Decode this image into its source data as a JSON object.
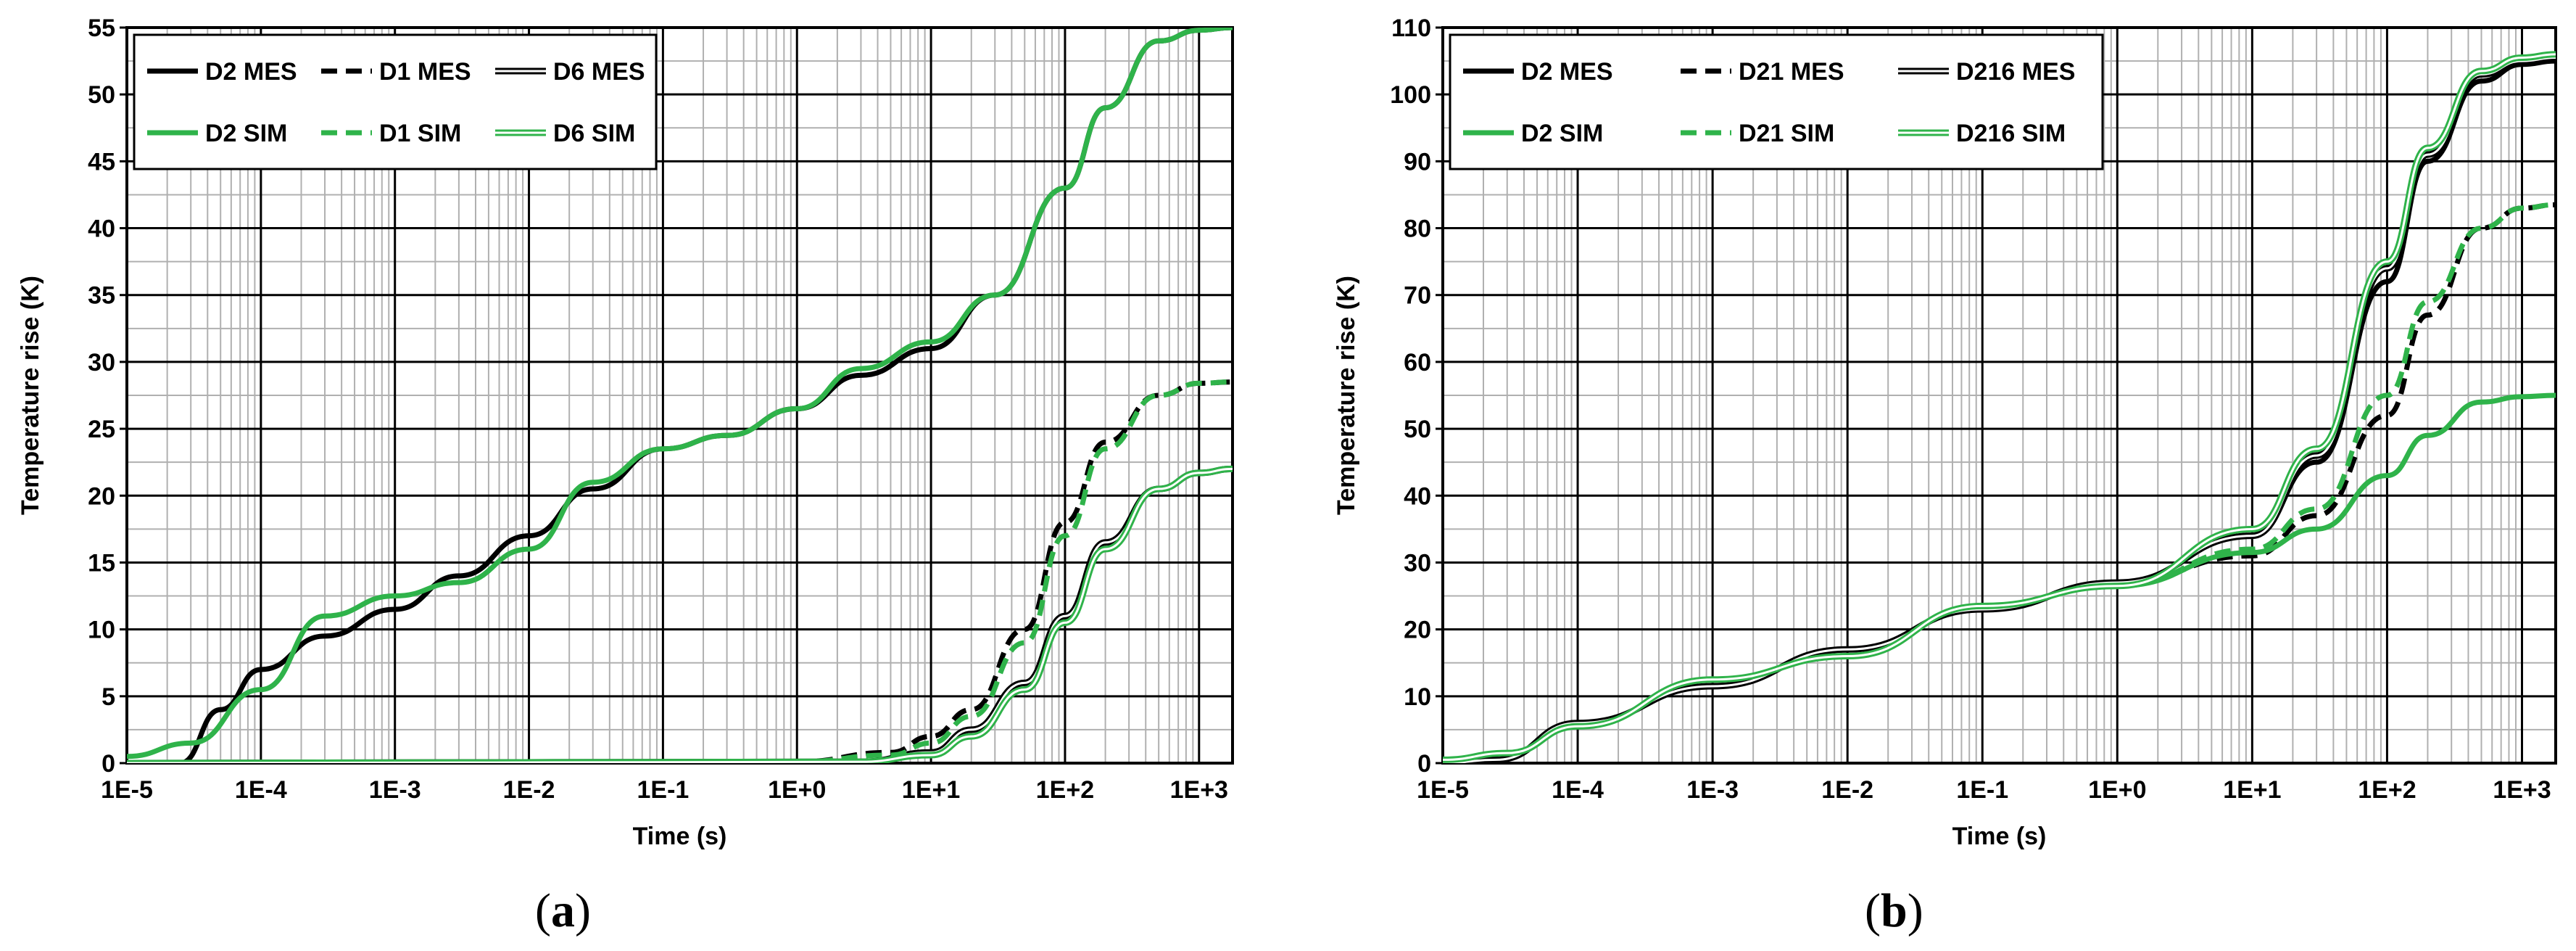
{
  "captions": {
    "a": {
      "open": "(",
      "letter": "a",
      "close": ")"
    },
    "b": {
      "open": "(",
      "letter": "b",
      "close": ")"
    }
  },
  "colors": {
    "mes": "#000000",
    "sim": "#2fb34a",
    "minor_grid": "#b0b0b0",
    "major_grid": "#000000"
  },
  "chart_data": [
    {
      "type": "line",
      "panel": "a",
      "xlabel": "Time (s)",
      "ylabel": "Temperature rise (K)",
      "xscale": "log",
      "xlim": [
        1e-05,
        1778
      ],
      "ylim": [
        0,
        55
      ],
      "xticks": [
        "1E-5",
        "1E-4",
        "1E-3",
        "1E-2",
        "1E-1",
        "1E+0",
        "1E+1",
        "1E+2",
        "1E+3"
      ],
      "yticks": [
        "0",
        "5",
        "10",
        "15",
        "20",
        "25",
        "30",
        "35",
        "40",
        "45",
        "50",
        "55"
      ],
      "grid": true,
      "legend_position": "top-left",
      "series": [
        {
          "name": "D2 MES",
          "style": "solid",
          "color": "#000000",
          "x": [
            2.5e-05,
            5e-05,
            0.0001,
            0.0003,
            0.001,
            0.003,
            0.01,
            0.03,
            0.1,
            0.3,
            1,
            3,
            10,
            30,
            100,
            200,
            500,
            1000,
            1778
          ],
          "y": [
            0,
            4,
            7,
            9.5,
            11.5,
            14,
            17,
            20.5,
            23.5,
            24.5,
            26.5,
            29,
            31,
            35,
            43,
            49,
            54,
            54.8,
            55
          ]
        },
        {
          "name": "D1 MES",
          "style": "dashed",
          "color": "#000000",
          "x": [
            1e-05,
            1,
            5,
            10,
            20,
            50,
            100,
            200,
            500,
            1000,
            1778
          ],
          "y": [
            0,
            0.1,
            0.8,
            2,
            4,
            10,
            18,
            24,
            27.5,
            28.4,
            28.5
          ]
        },
        {
          "name": "D6 MES",
          "style": "double",
          "color": "#000000",
          "x": [
            1e-05,
            3,
            10,
            20,
            50,
            100,
            200,
            500,
            1000,
            1778
          ],
          "y": [
            0,
            0.1,
            0.8,
            2.5,
            6,
            11,
            16.5,
            20.5,
            21.7,
            22
          ]
        },
        {
          "name": "D2 SIM",
          "style": "solid",
          "color": "#2fb34a",
          "x": [
            1e-05,
            3e-05,
            0.0001,
            0.0003,
            0.001,
            0.003,
            0.01,
            0.03,
            0.1,
            0.3,
            1,
            3,
            10,
            30,
            100,
            200,
            500,
            1000,
            1778
          ],
          "y": [
            0.5,
            1.5,
            5.5,
            11,
            12.5,
            13.5,
            16,
            21,
            23.5,
            24.5,
            26.5,
            29.5,
            31.5,
            35,
            43,
            49,
            54,
            54.8,
            55
          ]
        },
        {
          "name": "D1 SIM",
          "style": "dashed",
          "color": "#2fb34a",
          "x": [
            1e-05,
            1,
            5,
            10,
            20,
            50,
            100,
            200,
            500,
            1000,
            1778
          ],
          "y": [
            0,
            0.1,
            0.6,
            1.5,
            3.5,
            9,
            17,
            23.5,
            27.5,
            28.4,
            28.5
          ]
        },
        {
          "name": "D6 SIM",
          "style": "double",
          "color": "#2fb34a",
          "x": [
            1e-05,
            3,
            10,
            20,
            50,
            100,
            200,
            500,
            1000,
            1778
          ],
          "y": [
            0,
            0.1,
            0.6,
            2,
            5.5,
            10.5,
            16,
            20.5,
            21.7,
            22
          ]
        }
      ]
    },
    {
      "type": "line",
      "panel": "b",
      "xlabel": "Time (s)",
      "ylabel": "Temperature rise (K)",
      "xscale": "log",
      "xlim": [
        1e-05,
        1778
      ],
      "ylim": [
        0,
        110
      ],
      "xticks": [
        "1E-5",
        "1E-4",
        "1E-3",
        "1E-2",
        "1E-1",
        "1E+0",
        "1E+1",
        "1E+2",
        "1E+3"
      ],
      "yticks": [
        "0",
        "10",
        "20",
        "30",
        "40",
        "50",
        "60",
        "70",
        "80",
        "90",
        "100",
        "110"
      ],
      "grid": true,
      "legend_position": "top-left",
      "series": [
        {
          "name": "D2 MES",
          "style": "solid",
          "color": "#000000",
          "x": [
            1e-05,
            2.5e-05,
            0.0001,
            0.001,
            0.01,
            0.1,
            1,
            10,
            30,
            100,
            200,
            500,
            1000,
            1778
          ],
          "y": [
            0,
            0.5,
            6,
            11.5,
            17,
            23,
            27,
            34,
            45,
            72,
            90,
            102,
            104.5,
            105
          ]
        },
        {
          "name": "D21 MES",
          "style": "dashed",
          "color": "#000000",
          "x": [
            1e-05,
            2.5e-05,
            0.0001,
            0.001,
            0.01,
            0.1,
            1,
            10,
            30,
            100,
            200,
            500,
            1000,
            1778
          ],
          "y": [
            0,
            0.5,
            6,
            11.5,
            17,
            23,
            27,
            31,
            37,
            52,
            67,
            80,
            83,
            83.5
          ]
        },
        {
          "name": "D216 MES",
          "style": "double",
          "color": "#000000",
          "x": [
            1e-05,
            2.5e-05,
            0.0001,
            0.001,
            0.01,
            0.1,
            1,
            10,
            30,
            100,
            200,
            500,
            1000,
            1778
          ],
          "y": [
            0,
            0.5,
            6,
            11.5,
            17,
            23,
            27,
            34,
            46,
            74,
            91,
            103,
            105,
            105.5
          ]
        },
        {
          "name": "D2 SIM",
          "style": "solid",
          "color": "#2fb34a",
          "x": [
            1e-05,
            3e-05,
            0.0001,
            0.001,
            0.01,
            0.1,
            1,
            10,
            30,
            100,
            200,
            500,
            1000,
            1778
          ],
          "y": [
            0.5,
            1.5,
            5.5,
            12.5,
            16,
            23.5,
            26.5,
            31.5,
            35,
            43,
            49,
            54,
            54.8,
            55
          ]
        },
        {
          "name": "D21 SIM",
          "style": "dashed",
          "color": "#2fb34a",
          "x": [
            1e-05,
            3e-05,
            0.0001,
            0.001,
            0.01,
            0.1,
            1,
            10,
            30,
            100,
            200,
            500,
            1000,
            1778
          ],
          "y": [
            0.5,
            1.5,
            5.5,
            12.5,
            16,
            23.5,
            26.5,
            32,
            38,
            55,
            69,
            80,
            83,
            83.5
          ]
        },
        {
          "name": "D216 SIM",
          "style": "double",
          "color": "#2fb34a",
          "x": [
            1e-05,
            3e-05,
            0.0001,
            0.001,
            0.01,
            0.1,
            1,
            10,
            30,
            100,
            200,
            500,
            1000,
            1778
          ],
          "y": [
            0.5,
            1.5,
            5.5,
            12.5,
            16,
            23.5,
            26.5,
            35,
            47,
            75,
            92,
            103.5,
            105.5,
            106
          ]
        }
      ]
    }
  ]
}
